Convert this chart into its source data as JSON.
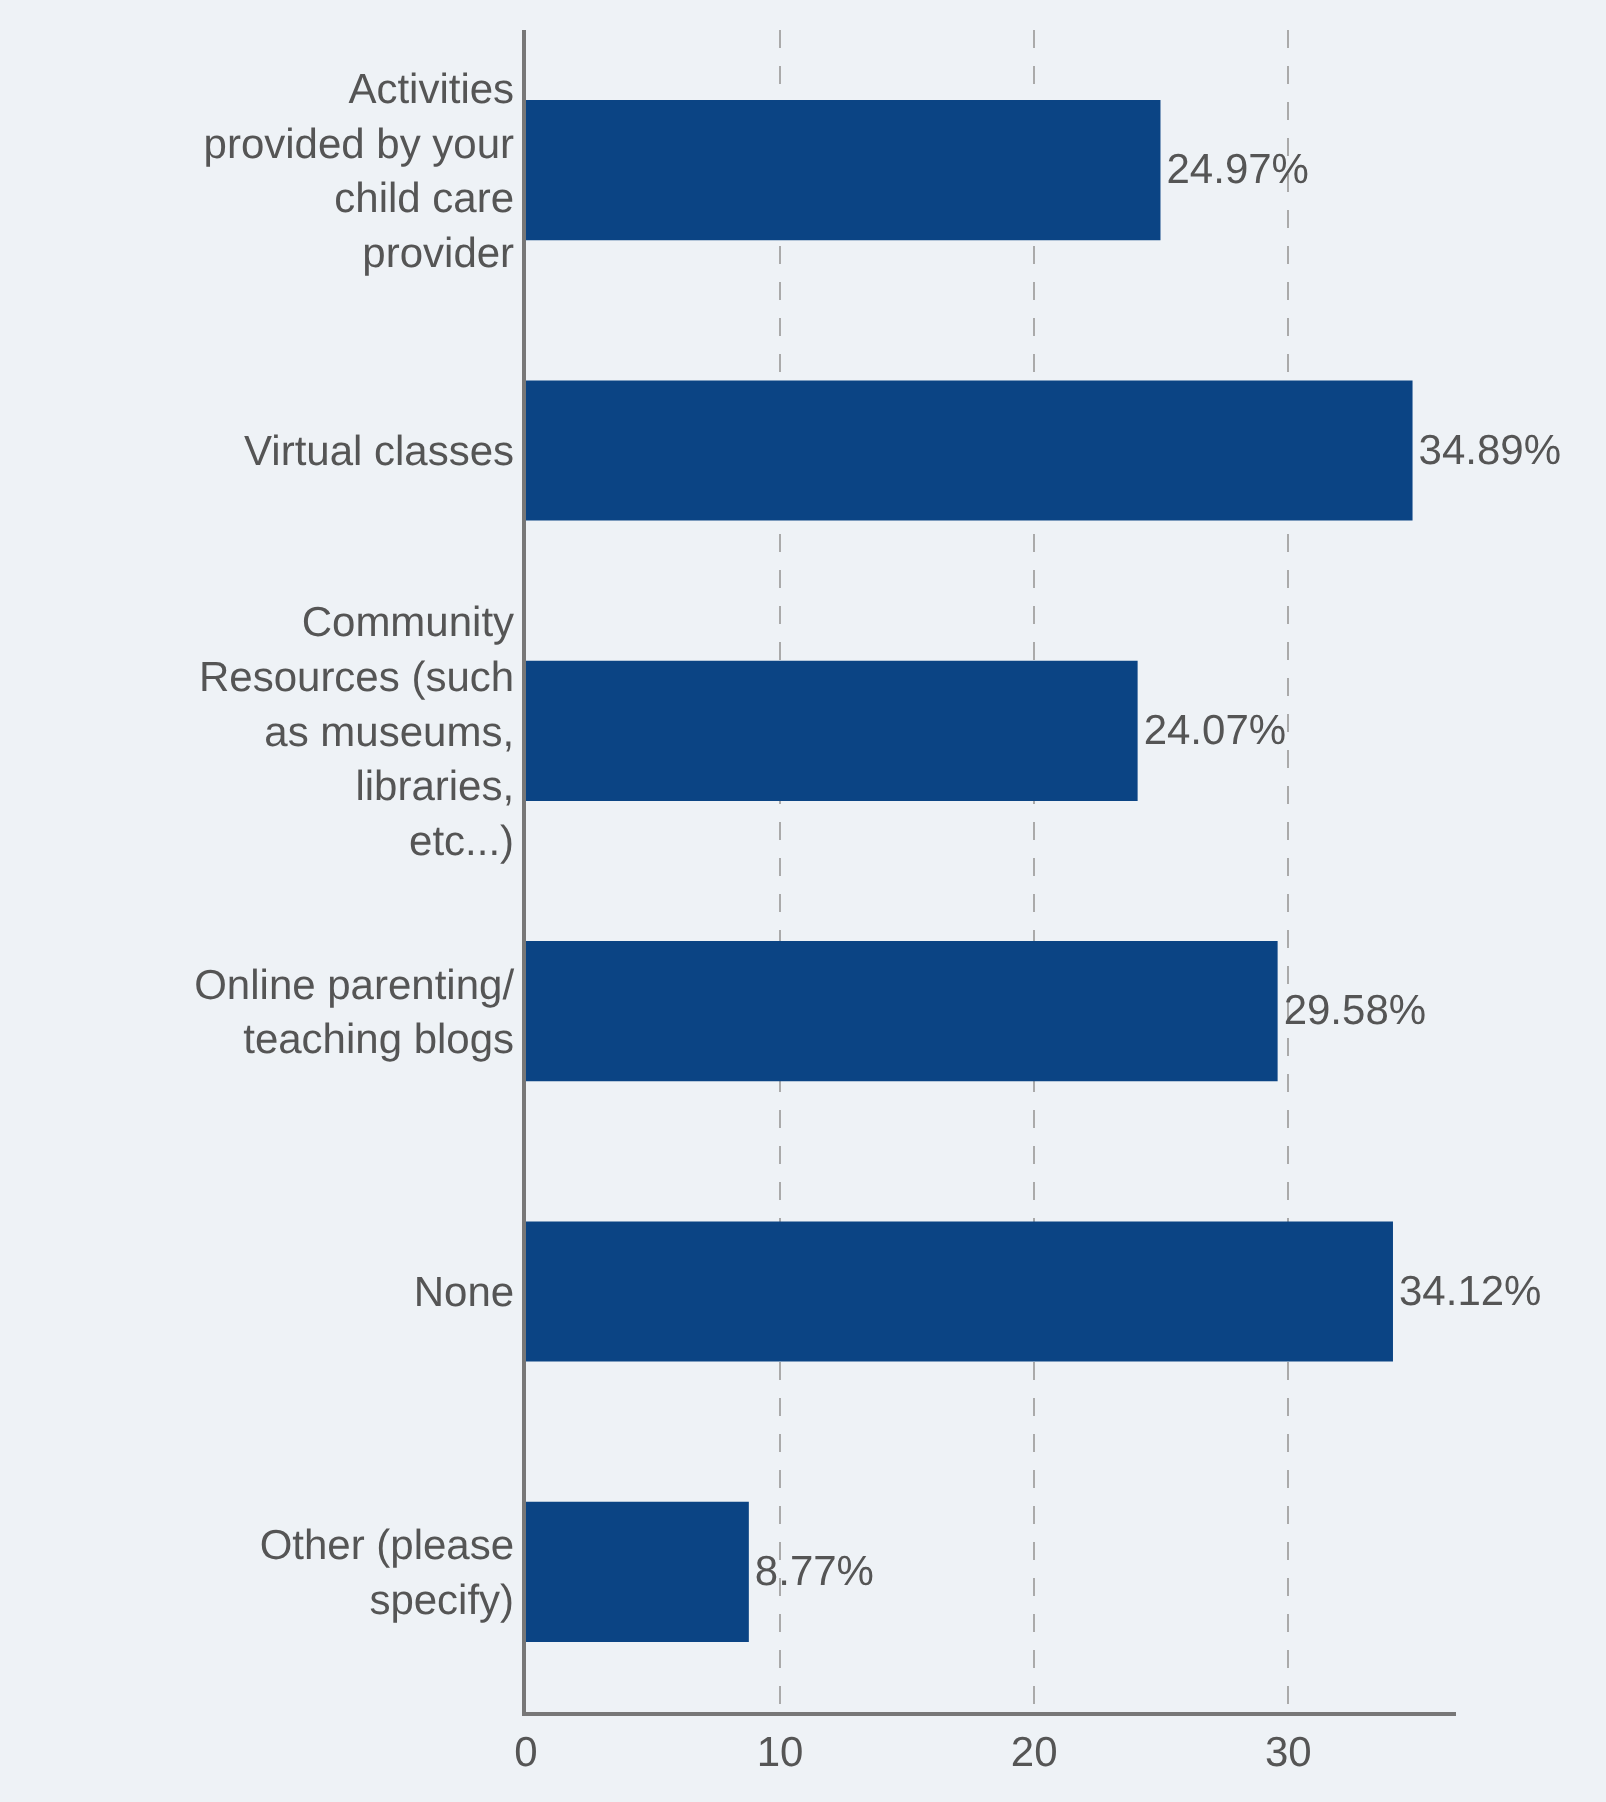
{
  "chart_data": {
    "type": "bar",
    "orientation": "horizontal",
    "categories": [
      "Activities provided by your child care provider",
      "Virtual classes",
      "Community Resources (such as museums, libraries, etc...)",
      "Online parenting/teaching blogs",
      "None",
      "Other (please specify)"
    ],
    "values": [
      24.97,
      34.89,
      24.07,
      29.58,
      34.12,
      8.77
    ],
    "value_labels": [
      "24.97%",
      "34.89%",
      "24.07%",
      "29.58%",
      "34.12%",
      "8.77%"
    ],
    "color": "#0b4484",
    "xlim": [
      0,
      36.6
    ],
    "xticks": [
      0,
      10,
      20,
      30
    ],
    "grid": "x"
  }
}
